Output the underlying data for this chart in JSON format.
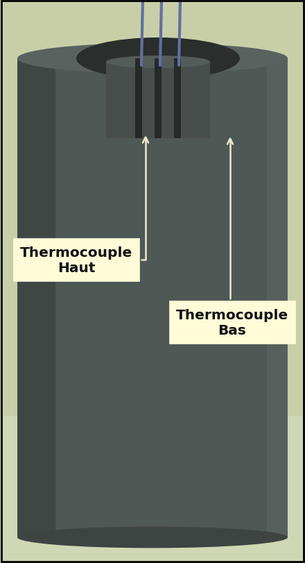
{
  "figsize": [
    4.4,
    8.12
  ],
  "dpi": 100,
  "bg_color": "#c8cfa8",
  "label1": "Thermocouple\nHaut",
  "label2": "Thermocouple\nBas",
  "box_facecolor": "#fefbd8",
  "box_edgecolor": "#fefbd8",
  "arrow_color": "#f0ead0",
  "text_color": "#111111",
  "label_fontsize": 14.5,
  "border_color": "#000000",
  "border_linewidth": 2,
  "cylinder_color": "#4e5855",
  "cylinder_top_color": "#5a6260",
  "cylinder_shadow_color": "#343a38",
  "cylinder_right_color": "#5f6a65",
  "inner_hole_color": "#2a2e2c",
  "insert_color": "#484e4c",
  "insert_top_color": "#545c59",
  "groove_color": "#252928",
  "wire_color": "#6070a0",
  "bg_bottom_color": "#d0d8b8"
}
